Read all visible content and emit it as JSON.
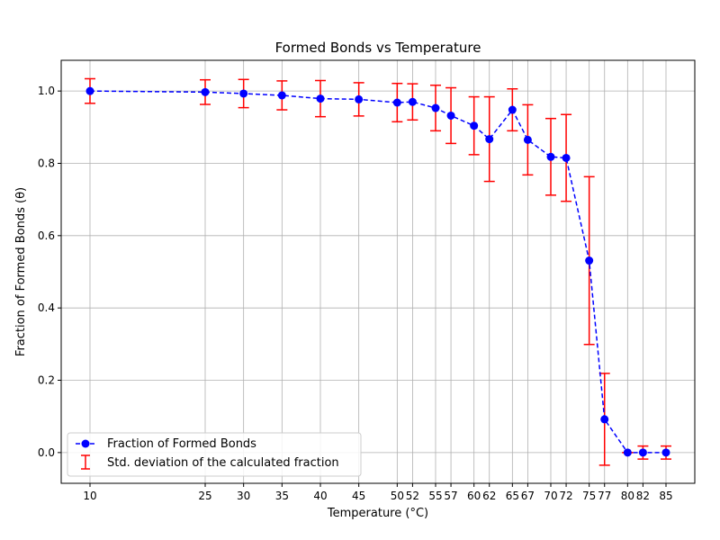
{
  "chart_data": {
    "type": "line",
    "title": "Formed Bonds vs Temperature",
    "xlabel": "Temperature (°C)",
    "ylabel": "Fraction of Formed Bonds (θ)",
    "xlim": [
      6.25,
      88.75
    ],
    "ylim": [
      -0.085,
      1.085
    ],
    "x_ticks": [
      10,
      25,
      30,
      35,
      40,
      45,
      50,
      52,
      55,
      57,
      60,
      62,
      65,
      67,
      70,
      72,
      75,
      77,
      80,
      82,
      85
    ],
    "x_tick_labels": [
      "10",
      "25",
      "30",
      "35",
      "40",
      "45",
      "50",
      "52",
      "55",
      "57",
      "60",
      "62",
      "65",
      "67",
      "70",
      "72",
      "75",
      "77",
      "80",
      "82",
      "85"
    ],
    "y_ticks": [
      0.0,
      0.2,
      0.4,
      0.6,
      0.8,
      1.0
    ],
    "y_tick_labels": [
      "0.0",
      "0.2",
      "0.4",
      "0.6",
      "0.8",
      "1.0"
    ],
    "grid": true,
    "legend_position": "lower-left",
    "series": [
      {
        "name": "Fraction of Formed Bonds",
        "color": "#0000ff",
        "line_style": "dashed",
        "marker": "circle",
        "x": [
          10,
          25,
          30,
          35,
          40,
          45,
          50,
          52,
          55,
          57,
          60,
          62,
          65,
          67,
          70,
          72,
          75,
          77,
          80,
          82,
          85
        ],
        "y": [
          1.0,
          0.997,
          0.993,
          0.988,
          0.979,
          0.977,
          0.968,
          0.97,
          0.953,
          0.932,
          0.904,
          0.867,
          0.948,
          0.865,
          0.818,
          0.815,
          0.531,
          0.092,
          0.0,
          0.0,
          0.0
        ]
      }
    ],
    "error_bars": {
      "name": "Std. deviation of the calculated fraction",
      "color": "#ff0000",
      "values": [
        0.034,
        0.034,
        0.039,
        0.04,
        0.05,
        0.046,
        0.053,
        0.05,
        0.063,
        0.077,
        0.08,
        0.117,
        0.058,
        0.097,
        0.106,
        0.12,
        0.232,
        0.127,
        0.0,
        0.018,
        0.018
      ]
    }
  }
}
